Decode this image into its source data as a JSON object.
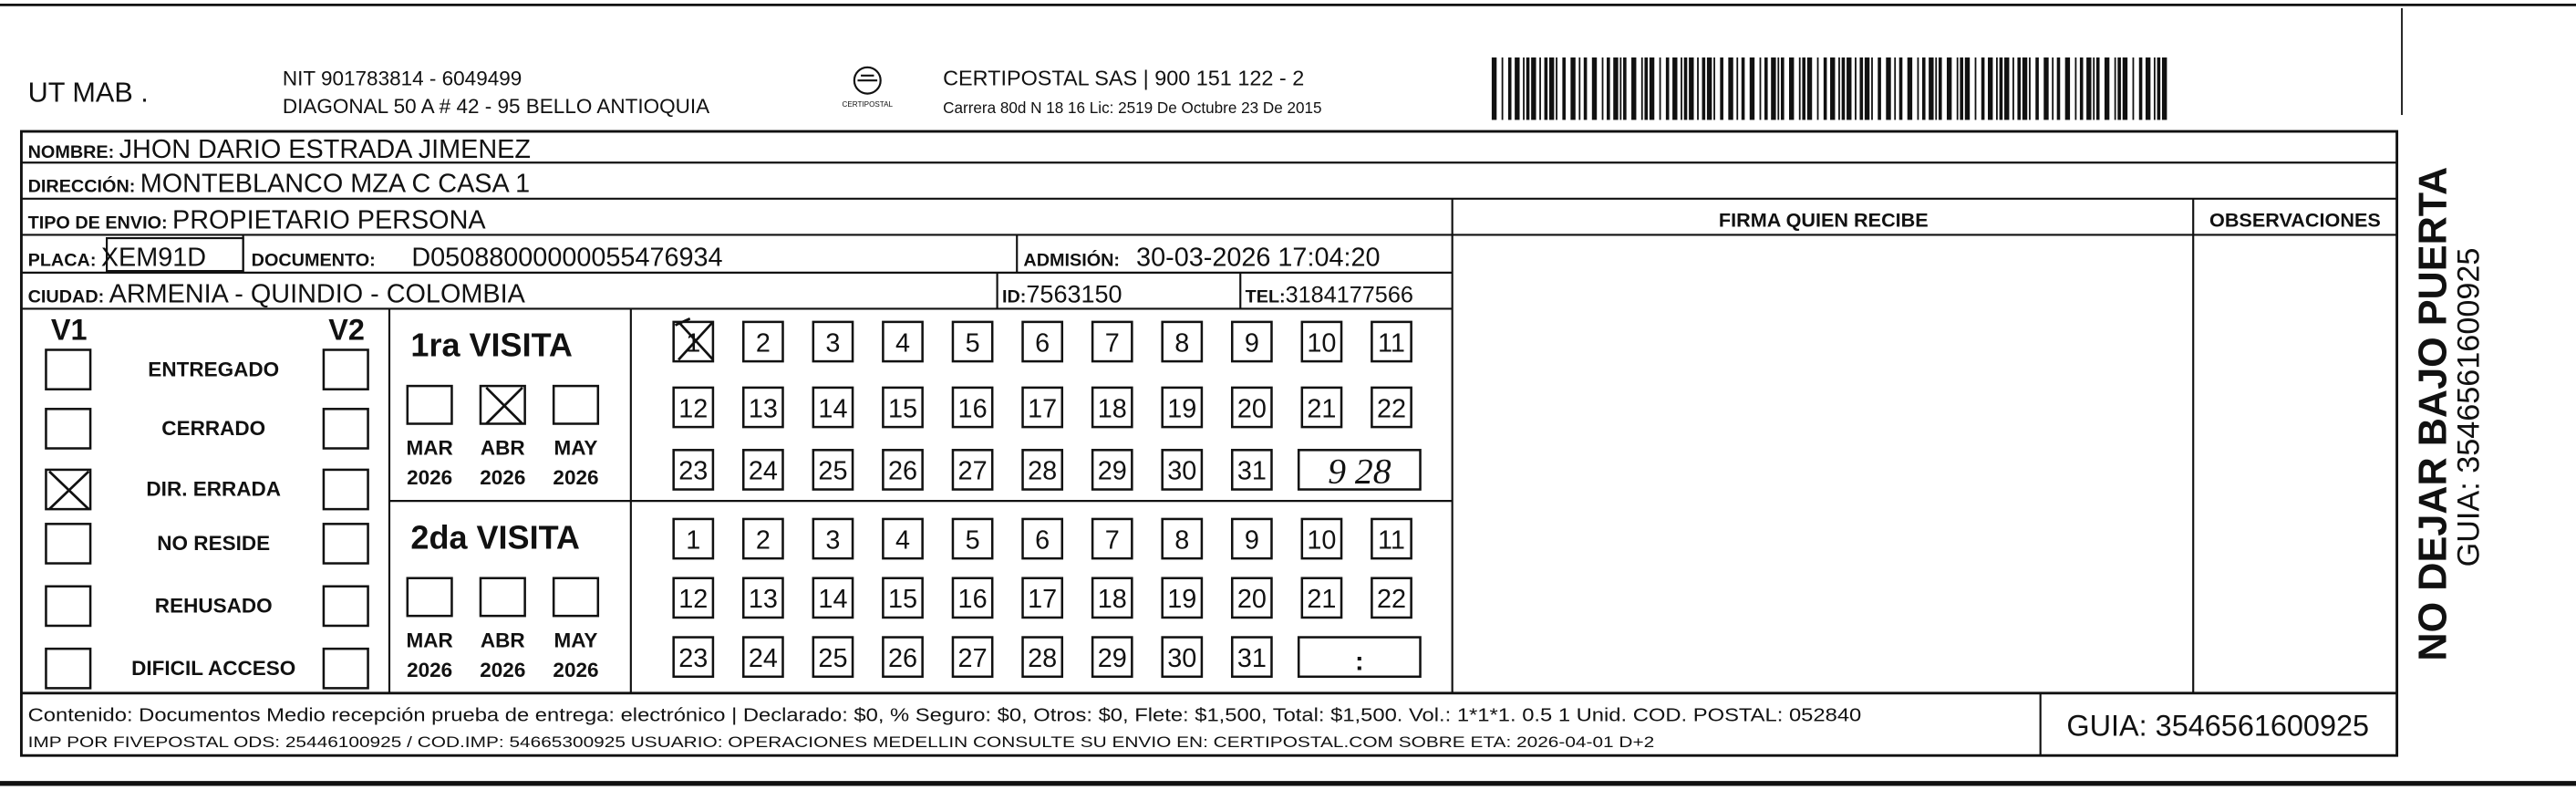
{
  "header": {
    "company": "UT MAB .",
    "nit": "NIT 901783814 - 6049499",
    "address": "DIAGONAL 50 A # 42 - 95  BELLO  ANTIOQUIA",
    "logo_text": "CERTIPOSTAL",
    "carrier": "CERTIPOSTAL SAS | 900 151 122 - 2",
    "license": "Carrera 80d N 18 16  Lic: 2519 De Octubre 23 De 2015"
  },
  "recipient": {
    "name": {
      "label": "NOMBRE:",
      "value": "JHON DARIO ESTRADA JIMENEZ"
    },
    "address": {
      "label": "DIRECCIÓN:",
      "value": "MONTEBLANCO MZA C CASA 1"
    },
    "shipment_type": {
      "label": "TIPO DE ENVIO:",
      "value": "PROPIETARIO PERSONA"
    },
    "plate": {
      "label": "PLACA:",
      "value": "XEM91D"
    },
    "document": {
      "label": "DOCUMENTO:",
      "value": "D05088000000055476934"
    },
    "admission": {
      "label": "ADMISIÓN:",
      "value": "30-03-2026 17:04:20"
    },
    "city": {
      "label": "CIUDAD:",
      "value": "ARMENIA - QUINDIO - COLOMBIA"
    },
    "id": {
      "label": "ID:",
      "value": "7563150"
    },
    "phone": {
      "label": "TEL:",
      "value": "3184177566"
    }
  },
  "signature": {
    "header": "FIRMA QUIEN RECIBE"
  },
  "observations": {
    "header": "OBSERVACIONES"
  },
  "status": {
    "v1": "V1",
    "v2": "V2",
    "options": [
      "ENTREGADO",
      "CERRADO",
      "DIR. ERRADA",
      "NO RESIDE",
      "REHUSADO",
      "DIFICIL ACCESO"
    ]
  },
  "visits": [
    {
      "title": "1ra VISITA",
      "months": [
        {
          "month": "MAR",
          "year": "2026"
        },
        {
          "month": "ABR",
          "year": "2026"
        },
        {
          "month": "MAY",
          "year": "2026"
        }
      ],
      "days": [
        1,
        2,
        3,
        4,
        5,
        6,
        7,
        8,
        9,
        10,
        11,
        12,
        13,
        14,
        15,
        16,
        17,
        18,
        19,
        20,
        21,
        22,
        23,
        24,
        25,
        26,
        27,
        28,
        29,
        30,
        31
      ],
      "extra": "9 28"
    },
    {
      "title": "2da VISITA",
      "months": [
        {
          "month": "MAR",
          "year": "2026"
        },
        {
          "month": "ABR",
          "year": "2026"
        },
        {
          "month": "MAY",
          "year": "2026"
        }
      ],
      "days": [
        1,
        2,
        3,
        4,
        5,
        6,
        7,
        8,
        9,
        10,
        11,
        12,
        13,
        14,
        15,
        16,
        17,
        18,
        19,
        20,
        21,
        22,
        23,
        24,
        25,
        26,
        27,
        28,
        29,
        30,
        31
      ],
      "extra": ":"
    }
  ],
  "footer": {
    "contents": "Contenido: Documentos Medio recepción prueba de entrega: electrónico | Declarado: $0, % Seguro: $0, Otros: $0, Flete: $1,500, Total: $1,500. Vol.: 1*1*1. 0.5  1 Unid. COD. POSTAL: 052840",
    "imp": "IMP POR FIVEPOSTAL ODS: 25446100925 / COD.IMP: 54665300925 USUARIO: OPERACIONES MEDELLIN CONSULTE SU ENVIO EN: CERTIPOSTAL.COM SOBRE ETA: 2026-04-01 D+2",
    "guide": "GUIA: 3546561600925"
  },
  "side": {
    "notice": "NO DEJAR BAJO PUERTA",
    "guide": "GUIA: 3546561600925"
  }
}
